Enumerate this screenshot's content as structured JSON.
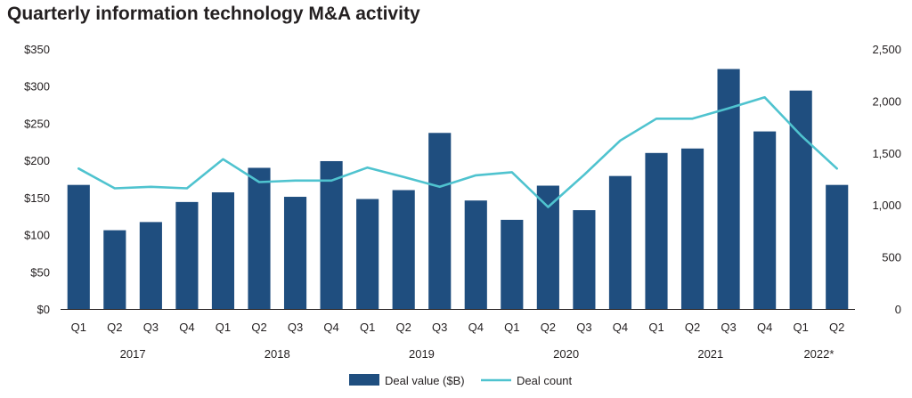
{
  "chart_data": {
    "type": "bar",
    "title": "Quarterly information technology M&A activity",
    "categories": [
      "Q1",
      "Q2",
      "Q3",
      "Q4",
      "Q1",
      "Q2",
      "Q3",
      "Q4",
      "Q1",
      "Q2",
      "Q3",
      "Q4",
      "Q1",
      "Q2",
      "Q3",
      "Q4",
      "Q1",
      "Q2",
      "Q3",
      "Q4",
      "Q1",
      "Q2"
    ],
    "year_groups": [
      {
        "label": "2017",
        "start": 0,
        "end": 3
      },
      {
        "label": "2018",
        "start": 4,
        "end": 7
      },
      {
        "label": "2019",
        "start": 8,
        "end": 11
      },
      {
        "label": "2020",
        "start": 12,
        "end": 15
      },
      {
        "label": "2021",
        "start": 16,
        "end": 19
      },
      {
        "label": "2022*",
        "start": 20,
        "end": 21
      }
    ],
    "series": [
      {
        "name": "Deal value ($B)",
        "type": "bar",
        "axis": "left",
        "color": "#1f4e7f",
        "values": [
          167,
          106,
          117,
          144,
          157,
          190,
          151,
          199,
          148,
          160,
          237,
          146,
          120,
          166,
          133,
          179,
          210,
          216,
          323,
          239,
          294,
          167
        ]
      },
      {
        "name": "Deal count",
        "type": "line",
        "axis": "right",
        "color": "#4fc3cf",
        "values": [
          1350,
          1160,
          1175,
          1160,
          1440,
          1220,
          1235,
          1235,
          1360,
          1270,
          1175,
          1285,
          1315,
          980,
          1290,
          1620,
          1830,
          1830,
          1930,
          2035,
          1670,
          1350
        ]
      }
    ],
    "y_left": {
      "ylim": [
        0,
        350
      ],
      "ticks": [
        0,
        50,
        100,
        150,
        200,
        250,
        300,
        350
      ],
      "tick_labels": [
        "$0",
        "$50",
        "$100",
        "$150",
        "$200",
        "$250",
        "$300",
        "$350"
      ]
    },
    "y_right": {
      "ylim": [
        0,
        2500
      ],
      "ticks": [
        0,
        500,
        1000,
        1500,
        2000,
        2500
      ],
      "tick_labels": [
        "0",
        "500",
        "1,000",
        "1,500",
        "2,000",
        "2,500"
      ]
    },
    "grid": false,
    "legend": {
      "position": "bottom-center"
    }
  }
}
